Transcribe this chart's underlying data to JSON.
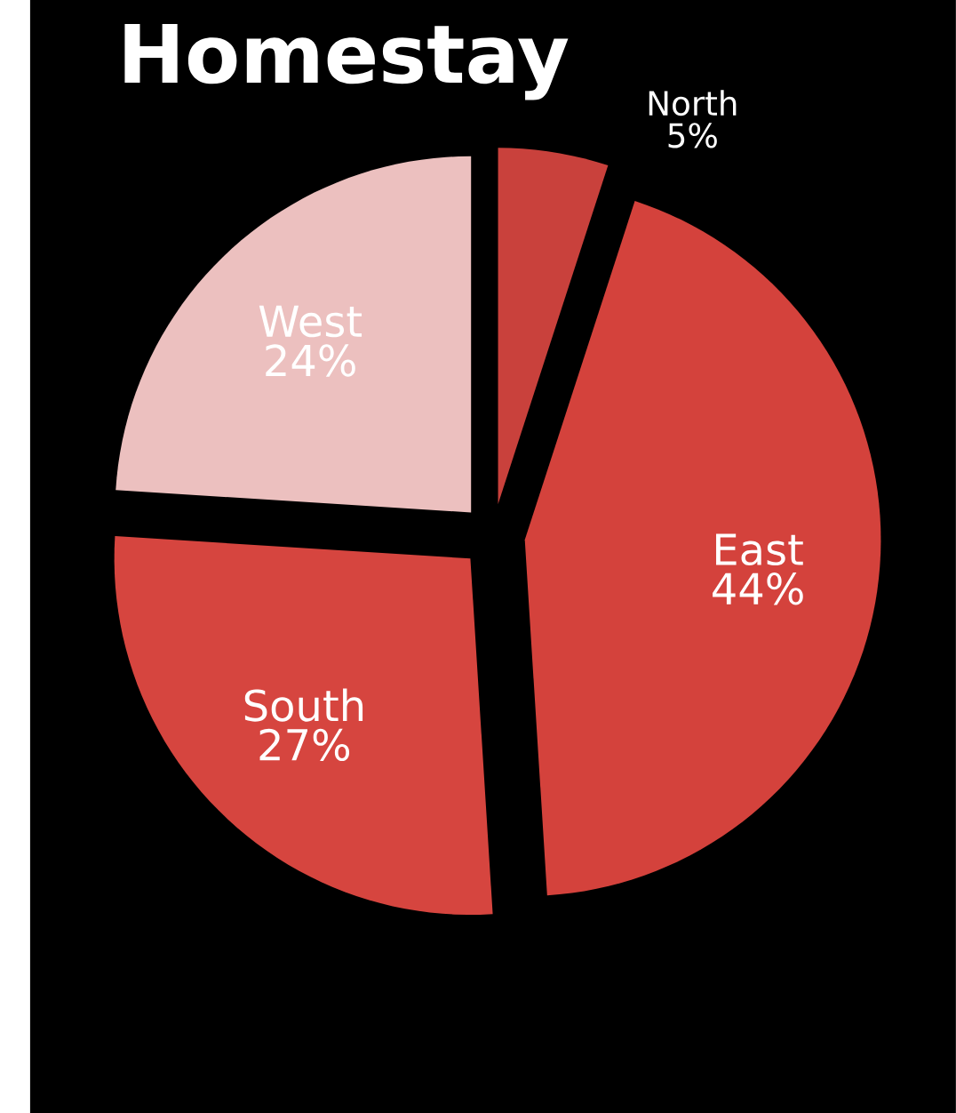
{
  "chart_data": {
    "type": "pie",
    "title": "Homestay",
    "categories": [
      "North",
      "East",
      "South",
      "West"
    ],
    "values": [
      5,
      44,
      27,
      24
    ],
    "value_labels": [
      "5%",
      "44%",
      "27%",
      "24%"
    ],
    "colors": [
      "#c9413c",
      "#d4423c",
      "#d6453f",
      "#ecc0bf"
    ]
  }
}
